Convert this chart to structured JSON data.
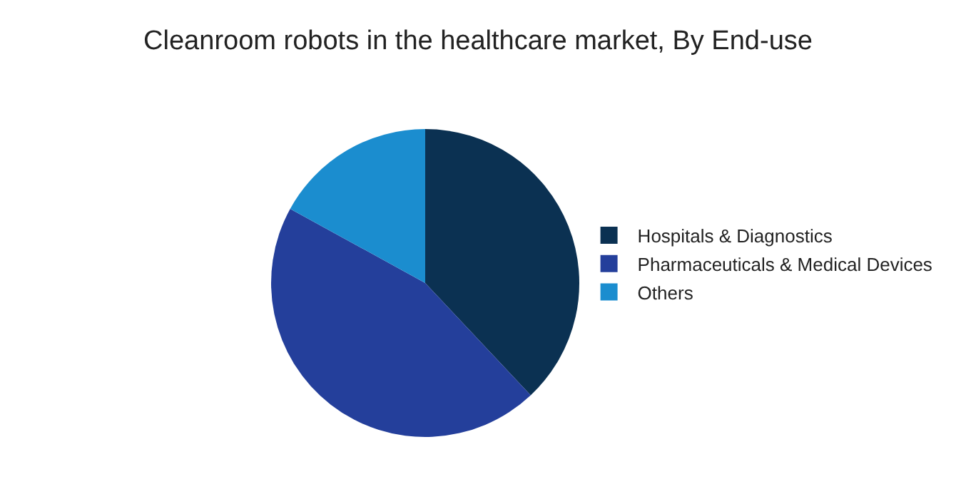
{
  "chart_data": {
    "type": "pie",
    "title": "Cleanroom robots in the healthcare market, By End-use",
    "categories": [
      "Hospitals & Diagnostics",
      "Pharmaceuticals & Medical Devices",
      "Others"
    ],
    "values": [
      38,
      45,
      17
    ],
    "colors": [
      "#0b3152",
      "#243f9b",
      "#1b8dcf"
    ],
    "legend": "right"
  }
}
